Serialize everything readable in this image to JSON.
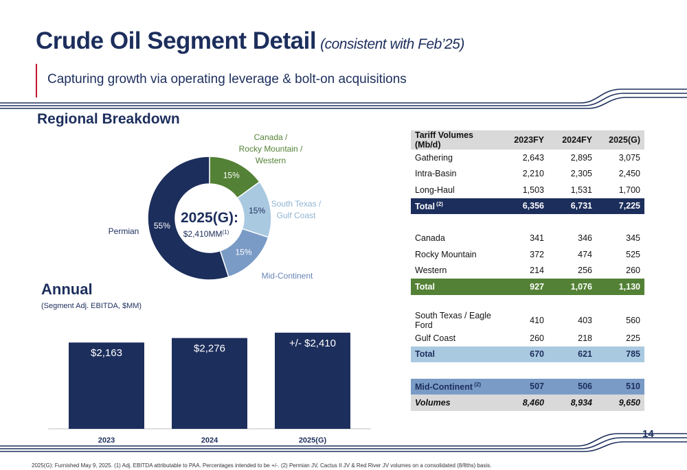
{
  "header": {
    "title": "Crude Oil Segment Detail",
    "title_note": "(consistent with Feb’25)",
    "tagline": "Capturing growth via operating leverage & bolt-on acquisitions",
    "accent_color": "#c8102e",
    "brand_color": "#1c2e5c"
  },
  "regional": {
    "heading": "Regional Breakdown",
    "center_title": "2025(G):",
    "center_value": "$2,410MM",
    "center_note": "(1)",
    "slices": [
      {
        "name_lines": [
          "Canada /",
          "Rocky Mountain /",
          "Western"
        ],
        "pct_label": "15%",
        "value": 15,
        "color": "#538135",
        "label_color": "#538135"
      },
      {
        "name_lines": [
          "South Texas /",
          "Gulf Coast"
        ],
        "pct_label": "15%",
        "value": 15,
        "color": "#a9c9e0",
        "label_color": "#8fb3d1"
      },
      {
        "name_lines": [
          "Mid-Continent"
        ],
        "pct_label": "15%",
        "value": 15,
        "color": "#7a9bc6",
        "label_color": "#6584b5"
      },
      {
        "name_lines": [
          "Permian"
        ],
        "pct_label": "55%",
        "value": 55,
        "color": "#1c2e5c",
        "label_color": "#1c2e5c"
      }
    ]
  },
  "annual": {
    "heading": "Annual",
    "subheading": "(Segment Adj. EBITDA, $MM)"
  },
  "chart_data": {
    "type": "bar",
    "categories": [
      "2023",
      "2024",
      "2025(G)"
    ],
    "values": [
      2163,
      2276,
      2410
    ],
    "value_labels": [
      "$2,163",
      "$2,276",
      "+/- $2,410"
    ],
    "bar_color": "#1c2e5c"
  },
  "table": {
    "headers": [
      "Tariff Volumes (Mb/d)",
      "2023FY",
      "2024FY",
      "2025(G)"
    ],
    "rows": [
      {
        "kind": "row",
        "label": "Gathering",
        "v": [
          "2,643",
          "2,895",
          "3,075"
        ]
      },
      {
        "kind": "row",
        "label": "Intra-Basin",
        "v": [
          "2,210",
          "2,305",
          "2,450"
        ]
      },
      {
        "kind": "row",
        "label": "Long-Haul",
        "v": [
          "1,503",
          "1,531",
          "1,700"
        ]
      },
      {
        "kind": "t-navy",
        "label": "Total",
        "note": "(2)",
        "v": [
          "6,356",
          "6,731",
          "7,225"
        ]
      },
      {
        "kind": "gap"
      },
      {
        "kind": "row",
        "label": "Canada",
        "v": [
          "341",
          "346",
          "345"
        ]
      },
      {
        "kind": "row",
        "label": "Rocky Mountain",
        "v": [
          "372",
          "474",
          "525"
        ]
      },
      {
        "kind": "row",
        "label": "Western",
        "v": [
          "214",
          "256",
          "260"
        ]
      },
      {
        "kind": "t-green",
        "label": "Total",
        "v": [
          "927",
          "1,076",
          "1,130"
        ]
      },
      {
        "kind": "gap"
      },
      {
        "kind": "row",
        "label": "South Texas / Eagle Ford",
        "v": [
          "410",
          "403",
          "560"
        ]
      },
      {
        "kind": "row",
        "label": "Gulf Coast",
        "v": [
          "260",
          "218",
          "225"
        ]
      },
      {
        "kind": "t-lblue",
        "label": "Total",
        "v": [
          "670",
          "621",
          "785"
        ]
      },
      {
        "kind": "gap"
      },
      {
        "kind": "t-mblue",
        "label": "Mid-Continent",
        "note": "(2)",
        "v": [
          "507",
          "506",
          "510"
        ]
      },
      {
        "kind": "t-grey",
        "label": "Volumes",
        "v": [
          "8,460",
          "8,934",
          "9,650"
        ]
      }
    ]
  },
  "page_number": "14",
  "footnote": "2025(G): Furnished May 9, 2025. (1) Adj. EBITDA attributable to PAA. Percentages intended to be +/-. (2) Permian JV, Cactus II JV & Red River JV volumes on a consolidated (8/8ths) basis."
}
